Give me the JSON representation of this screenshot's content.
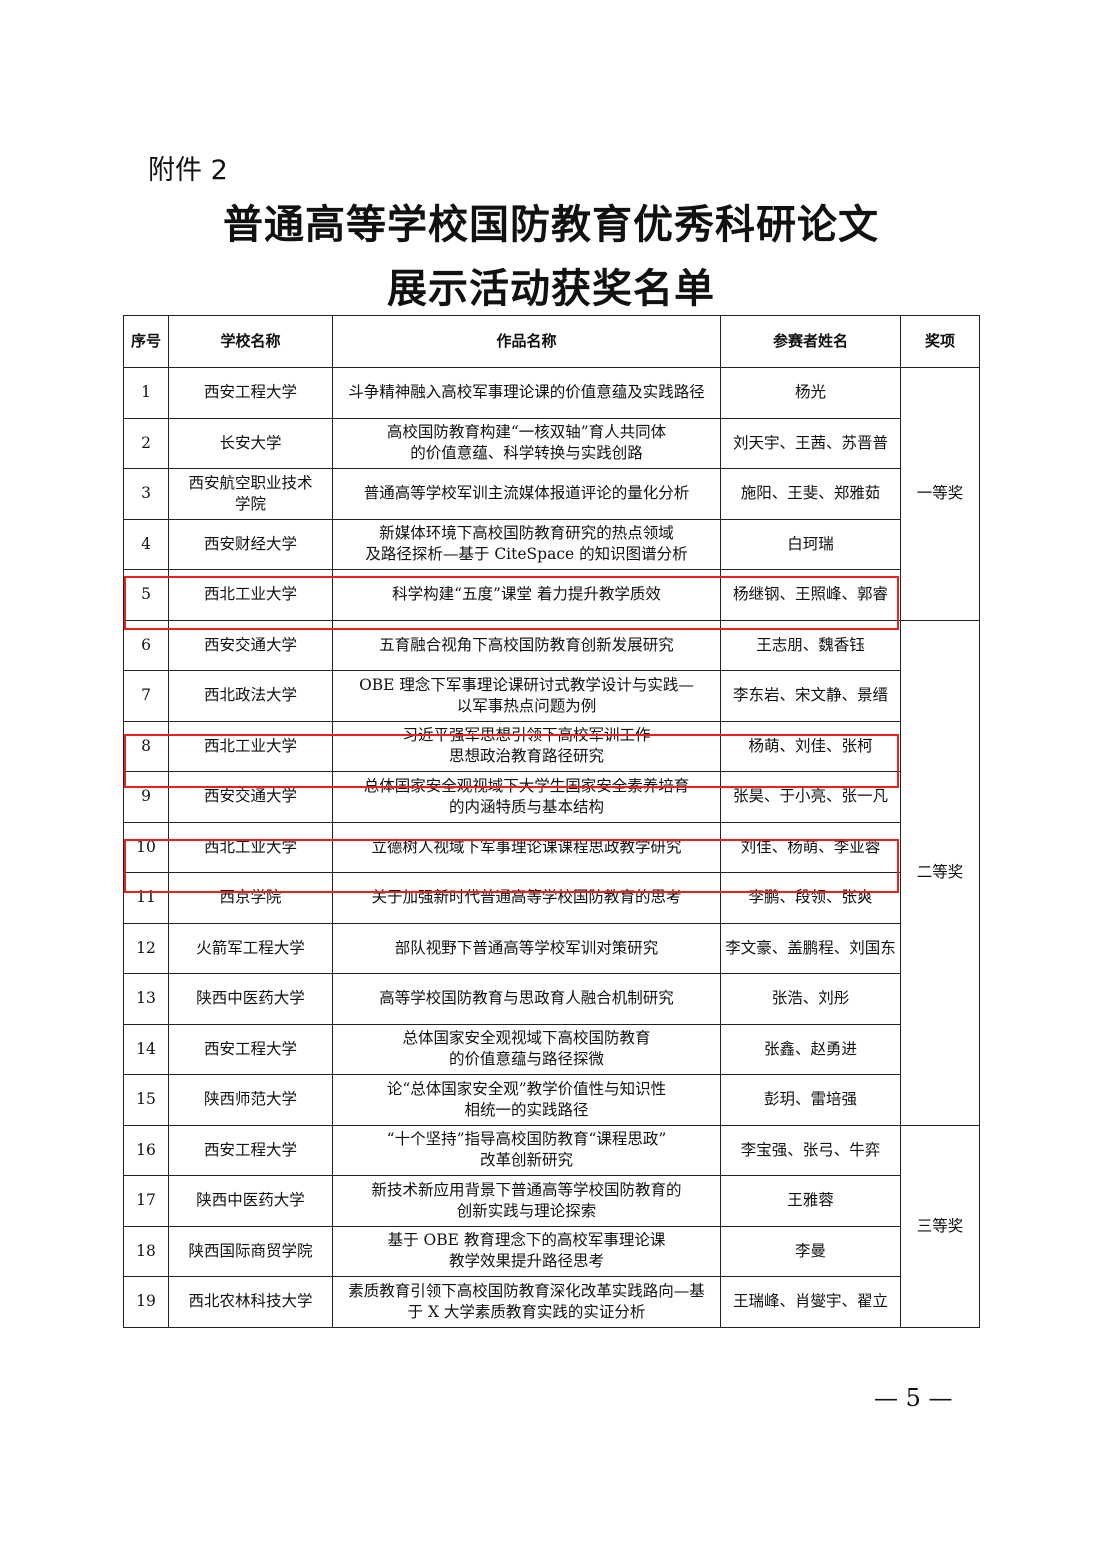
{
  "attachment_label": "附件 2",
  "title_line1": "普通高等学校国防教育优秀科研论文",
  "title_line2": "展示活动获奖名单",
  "headers": [
    "序号",
    "学校名称",
    "作品名称",
    "参赛者姓名",
    "奖项"
  ],
  "rows": [
    {
      "no": "1",
      "school": "西安工程大学",
      "work": "斗争精神融入高校军事理论课的价值意蕴及实践路径",
      "authors": "杨光"
    },
    {
      "no": "2",
      "school": "长安大学",
      "work": "高校国防教育构建“一核双轴”育人共同体\n的价值意蕴、科学转换与实践创路",
      "authors": "刘天宇、王茜、苏晋普"
    },
    {
      "no": "3",
      "school": "西安航空职业技术\n学院",
      "work": "普通高等学校军训主流媒体报道评论的量化分析",
      "authors": "施阳、王斐、郑雅茹"
    },
    {
      "no": "4",
      "school": "西安财经大学",
      "work": "新媒体环境下高校国防教育研究的热点领域\n及路径探析—基于 CiteSpace 的知识图谱分析",
      "authors": "白珂瑞"
    },
    {
      "no": "5",
      "school": "西北工业大学",
      "work": "科学构建“五度”课堂 着力提升教学质效",
      "authors": "杨继钢、王照峰、郭睿"
    },
    {
      "no": "6",
      "school": "西安交通大学",
      "work": "五育融合视角下高校国防教育创新发展研究",
      "authors": "王志朋、魏香钰"
    },
    {
      "no": "7",
      "school": "西北政法大学",
      "work": "OBE 理念下军事理论课研讨式教学设计与实践—\n以军事热点问题为例",
      "authors": "李东岩、宋文静、景缙"
    },
    {
      "no": "8",
      "school": "西北工业大学",
      "work": "习近平强军思想引领下高校军训工作\n思想政治教育路径研究",
      "authors": "杨萌、刘佳、张柯"
    },
    {
      "no": "9",
      "school": "西安交通大学",
      "work": "总体国家安全观视域下大学生国家安全素养培育\n的内涵特质与基本结构",
      "authors": "张昊、于小亮、张一凡"
    },
    {
      "no": "10",
      "school": "西北工业大学",
      "work": "立德树人视域下军事理论课课程思政教学研究",
      "authors": "刘佳、杨萌、李亚蓉"
    },
    {
      "no": "11",
      "school": "西京学院",
      "work": "关于加强新时代普通高等学校国防教育的思考",
      "authors": "李鹏、段领、张爽"
    },
    {
      "no": "12",
      "school": "火箭军工程大学",
      "work": "部队视野下普通高等学校军训对策研究",
      "authors": "李文豪、盖鹏程、刘国东"
    },
    {
      "no": "13",
      "school": "陕西中医药大学",
      "work": "高等学校国防教育与思政育人融合机制研究",
      "authors": "张浩、刘彤"
    },
    {
      "no": "14",
      "school": "西安工程大学",
      "work": "总体国家安全观视域下高校国防教育\n的价值意蕴与路径探微",
      "authors": "张鑫、赵勇进"
    },
    {
      "no": "15",
      "school": "陕西师范大学",
      "work": "论“总体国家安全观”教学价值性与知识性\n相统一的实践路径",
      "authors": "彭玥、雷培强"
    },
    {
      "no": "16",
      "school": "西安工程大学",
      "work": "“十个坚持”指导高校国防教育“课程思政”\n改革创新研究",
      "authors": "李宝强、张弓、牛弈"
    },
    {
      "no": "17",
      "school": "陕西中医药大学",
      "work": "新技术新应用背景下普通高等学校国防教育的\n创新实践与理论探索",
      "authors": "王雅蓉"
    },
    {
      "no": "18",
      "school": "陕西国际商贸学院",
      "work": "基于 OBE 教育理念下的高校军事理论课\n教学效果提升路径思考",
      "authors": "李曼"
    },
    {
      "no": "19",
      "school": "西北农林科技大学",
      "work": "素质教育引领下高校国防教育深化改革实践路向—基\n于 X 大学素质教育实践的实证分析",
      "authors": "王瑞峰、肖燮宇、翟立"
    }
  ],
  "awards": [
    {
      "label": "一等奖",
      "from": 1,
      "to": 5
    },
    {
      "label": "二等奖",
      "from": 6,
      "to": 15
    },
    {
      "label": "三等奖",
      "from": 16,
      "to": 19
    }
  ],
  "highlighted_rows": [
    5,
    8,
    10
  ],
  "highlight_color": "#e8231d",
  "page_number": "— 5 —"
}
